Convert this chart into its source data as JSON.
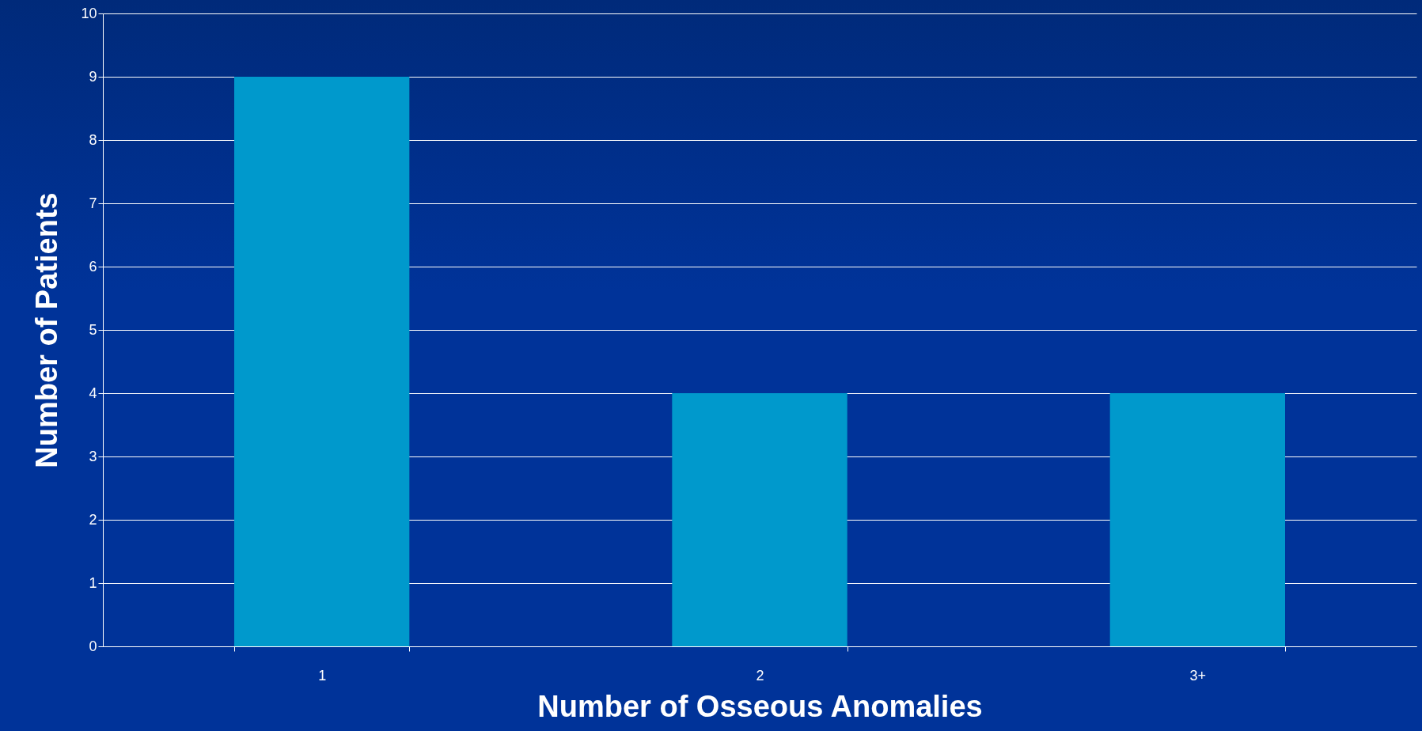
{
  "chart_data": {
    "type": "bar",
    "xlabel": "Number of Osseous Anomalies",
    "ylabel": "Number of Patients",
    "categories": [
      "1",
      "2",
      "3+"
    ],
    "values": [
      9,
      4,
      4
    ],
    "color": "#0099cc",
    "ylim": [
      0,
      10
    ],
    "yticks": [
      0,
      1,
      2,
      3,
      4,
      5,
      6,
      7,
      8,
      9,
      10
    ],
    "grid": "y"
  }
}
